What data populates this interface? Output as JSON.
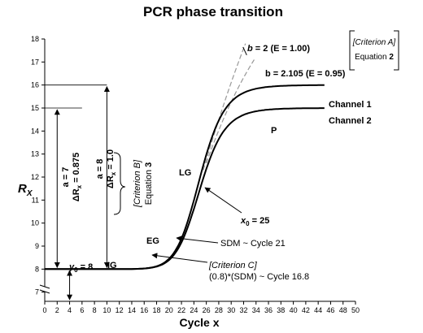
{
  "chart_data": {
    "type": "line",
    "title": "PCR phase transition",
    "xlabel": "Cycle x",
    "ylabel_main": "R",
    "ylabel_sub": "X",
    "xlim": [
      0,
      50
    ],
    "ylim": [
      6.6,
      18
    ],
    "xticks": [
      0,
      2,
      4,
      6,
      8,
      10,
      12,
      14,
      16,
      18,
      20,
      22,
      24,
      26,
      28,
      30,
      32,
      34,
      36,
      38,
      40,
      42,
      44,
      46,
      48,
      50
    ],
    "yticks": [
      7,
      8,
      9,
      10,
      11,
      12,
      13,
      14,
      15,
      16,
      17,
      18
    ],
    "series": [
      {
        "name": "Channel 1",
        "y0": 8,
        "a": 8,
        "b": 2.105,
        "x0": 25
      },
      {
        "name": "Channel 2",
        "y0": 8,
        "a": 7,
        "b": 2.105,
        "x0": 25
      }
    ],
    "dashed_curves": [
      {
        "b_label": "b = 2",
        "E_label": "(E = 1.00)",
        "y0": 8,
        "a": 8,
        "b": 2,
        "x0": 25
      },
      {
        "b_label": "b = 2.105",
        "E_label": "(E = 0.95)",
        "y0": 8,
        "a": 8,
        "b": 2.105,
        "x0": 25
      }
    ],
    "reference_lines": [
      {
        "y": 16,
        "x_from": 0,
        "x_to": 10
      },
      {
        "y": 15,
        "x_from": 0,
        "x_to": 6
      }
    ],
    "annotations": {
      "channel1": "Channel 1",
      "channel2": "Channel 2",
      "P": "P",
      "LG": "LG",
      "EG": "EG",
      "IG": "IG",
      "x0_pre": "x",
      "x0_sub": "0",
      "x0_post": " = 25",
      "y0_pre": "y",
      "y0_sub": "0",
      "y0_post": " = 8",
      "sdm": "SDM ~ Cycle 21",
      "critC_title": "[Criterion C]",
      "critC_body": "(0.8)*(SDM) ~ Cycle 16.8",
      "critA_title": "[Criterion A]",
      "critA_eq_pre": "Equation ",
      "critA_eq_num": "2",
      "critB_title": "[Criterion B]",
      "critB_eq_pre": "Equation ",
      "critB_eq_num": "3",
      "ch1_a": "a = 8",
      "ch1_dR": "ΔR",
      "ch1_dR_sub": "x",
      "ch1_dR_val": " = 1.0",
      "ch2_a": "a = 7",
      "ch2_dR": "ΔR",
      "ch2_dR_sub": "x",
      "ch2_dR_val": " = 0.875"
    }
  }
}
